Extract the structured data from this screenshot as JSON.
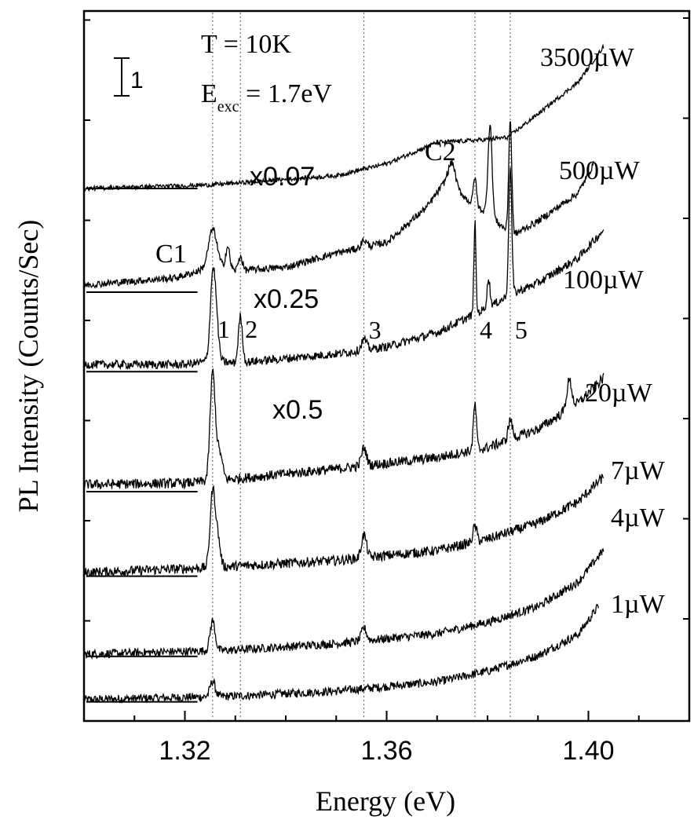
{
  "chart_data": {
    "type": "line",
    "xlabel": "Energy (eV)",
    "ylabel": "PL Intensity (Counts/Sec)",
    "xlim": [
      1.3,
      1.42
    ],
    "x_ticks": [
      1.32,
      1.36,
      1.4
    ],
    "x_tick_labels": [
      "1.32",
      "1.36",
      "1.40"
    ],
    "ylim": [
      0,
      100
    ],
    "grid": false,
    "legend": "none",
    "annotations": {
      "temperature": "T = 10K",
      "excitation_prefix": "E",
      "excitation_sub": "exc",
      "excitation_suffix": " = 1.7eV",
      "scale_bar_label": "1",
      "c1": "C1",
      "c2": "C2",
      "x007": "x0.07",
      "x025": "x0.25",
      "x05": "x0.5"
    },
    "reference_lines": [
      {
        "label": "1",
        "energy": 1.3255
      },
      {
        "label": "2",
        "energy": 1.331
      },
      {
        "label": "3",
        "energy": 1.3555
      },
      {
        "label": "4",
        "energy": 1.3775
      },
      {
        "label": "5",
        "energy": 1.3845
      }
    ],
    "series": [
      {
        "name": "1µW",
        "color": "#000000",
        "baseline": 2.7,
        "scale": 1,
        "base_curve": [
          [
            1.3,
            0.3
          ],
          [
            1.33,
            0.8
          ],
          [
            1.35,
            1.5
          ],
          [
            1.37,
            2.8
          ],
          [
            1.38,
            4.3
          ],
          [
            1.39,
            6.5
          ],
          [
            1.398,
            9.5
          ],
          [
            1.402,
            13.5
          ]
        ],
        "peaks": [
          [
            1.3255,
            2.2,
            0.0005
          ]
        ],
        "noise": 0.6
      },
      {
        "name": "4µW",
        "color": "#000000",
        "baseline": 9.1,
        "scale": 1,
        "base_curve": [
          [
            1.3,
            0.3
          ],
          [
            1.33,
            0.9
          ],
          [
            1.35,
            1.8
          ],
          [
            1.37,
            3.2
          ],
          [
            1.38,
            4.8
          ],
          [
            1.39,
            7
          ],
          [
            1.398,
            10.5
          ],
          [
            1.403,
            15
          ]
        ],
        "peaks": [
          [
            1.3255,
            4.2,
            0.0005
          ],
          [
            1.3555,
            1.8,
            0.0005
          ]
        ],
        "noise": 0.6
      },
      {
        "name": "7µW",
        "color": "#000000",
        "baseline": 20.4,
        "scale": 1,
        "base_curve": [
          [
            1.3,
            0.5
          ],
          [
            1.325,
            1.2
          ],
          [
            1.35,
            2.2
          ],
          [
            1.37,
            3.6
          ],
          [
            1.38,
            5.2
          ],
          [
            1.39,
            7.5
          ],
          [
            1.398,
            10.5
          ],
          [
            1.403,
            14
          ]
        ],
        "peaks": [
          [
            1.3255,
            10.5,
            0.0005
          ],
          [
            1.3265,
            4,
            0.0005
          ],
          [
            1.3555,
            3.2,
            0.0005
          ],
          [
            1.3775,
            2.2,
            0.0004
          ]
        ],
        "noise": 0.7
      },
      {
        "name": "20µW",
        "color": "#000000",
        "baseline": 32.3,
        "scale": 1,
        "base_curve": [
          [
            1.3,
            1
          ],
          [
            1.32,
            1.2
          ],
          [
            1.33,
            1.8
          ],
          [
            1.35,
            3.2
          ],
          [
            1.37,
            4.8
          ],
          [
            1.38,
            6.2
          ],
          [
            1.39,
            8.8
          ],
          [
            1.398,
            12.5
          ],
          [
            1.403,
            16
          ]
        ],
        "peaks": [
          [
            1.3255,
            15,
            0.0005
          ],
          [
            1.3268,
            4,
            0.0006
          ],
          [
            1.3555,
            2.5,
            0.0005
          ],
          [
            1.3775,
            6.5,
            0.0003
          ],
          [
            1.3845,
            2.8,
            0.0004
          ],
          [
            1.3962,
            4,
            0.0005
          ]
        ],
        "noise": 0.7
      },
      {
        "name": "100µW",
        "color": "#000000",
        "baseline": 49.2,
        "scale": 1,
        "base_curve": [
          [
            1.3,
            1
          ],
          [
            1.32,
            1
          ],
          [
            1.325,
            1.5
          ],
          [
            1.33,
            1.2
          ],
          [
            1.35,
            2.5
          ],
          [
            1.36,
            3.5
          ],
          [
            1.37,
            5.5
          ],
          [
            1.38,
            9
          ],
          [
            1.385,
            11
          ],
          [
            1.39,
            12.5
          ],
          [
            1.398,
            16
          ],
          [
            1.403,
            20
          ]
        ],
        "peaks": [
          [
            1.3255,
            11,
            0.0005
          ],
          [
            1.3262,
            5,
            0.0005
          ],
          [
            1.331,
            6.5,
            0.0004
          ],
          [
            1.3555,
            1.5,
            0.0005
          ],
          [
            1.3775,
            13,
            0.0002
          ],
          [
            1.3802,
            4,
            0.0003
          ],
          [
            1.3845,
            18,
            0.0003
          ]
        ],
        "noise": 0.6
      },
      {
        "name": "500µW",
        "color": "#000000",
        "baseline": 60.4,
        "scale": 1,
        "base_curve": [
          [
            1.3,
            1
          ],
          [
            1.318,
            2
          ],
          [
            1.322,
            2.8
          ],
          [
            1.326,
            4
          ],
          [
            1.33,
            3
          ],
          [
            1.34,
            3.5
          ],
          [
            1.35,
            5.5
          ],
          [
            1.36,
            7
          ],
          [
            1.368,
            12
          ],
          [
            1.372,
            16
          ],
          [
            1.376,
            13
          ],
          [
            1.38,
            11
          ],
          [
            1.385,
            8
          ],
          [
            1.39,
            10
          ],
          [
            1.398,
            14
          ],
          [
            1.401,
            18
          ]
        ],
        "peaks": [
          [
            1.3255,
            5,
            0.0008
          ],
          [
            1.3285,
            3,
            0.0004
          ],
          [
            1.331,
            2,
            0.0004
          ],
          [
            1.3555,
            1,
            0.0005
          ],
          [
            1.373,
            3,
            0.0006
          ],
          [
            1.3775,
            4,
            0.0003
          ],
          [
            1.3805,
            13,
            0.0004
          ],
          [
            1.3845,
            16,
            0.0003
          ]
        ],
        "noise": 0.5
      },
      {
        "name": "3500µW",
        "color": "#000000",
        "baseline": 75.0,
        "scale": 1,
        "base_curve": [
          [
            1.3,
            0
          ],
          [
            1.325,
            0.5
          ],
          [
            1.35,
            1.8
          ],
          [
            1.36,
            3.5
          ],
          [
            1.37,
            6.5
          ],
          [
            1.378,
            6.8
          ],
          [
            1.384,
            7.2
          ],
          [
            1.39,
            10.5
          ],
          [
            1.398,
            15
          ],
          [
            1.403,
            20
          ]
        ],
        "peaks": [],
        "noise": 0.3
      }
    ],
    "series_labels": [
      "3500µW",
      "500µW",
      "100µW",
      "20µW",
      "7µW",
      "4µW",
      "1µW"
    ],
    "zero_line_x_end": 1.3225
  }
}
